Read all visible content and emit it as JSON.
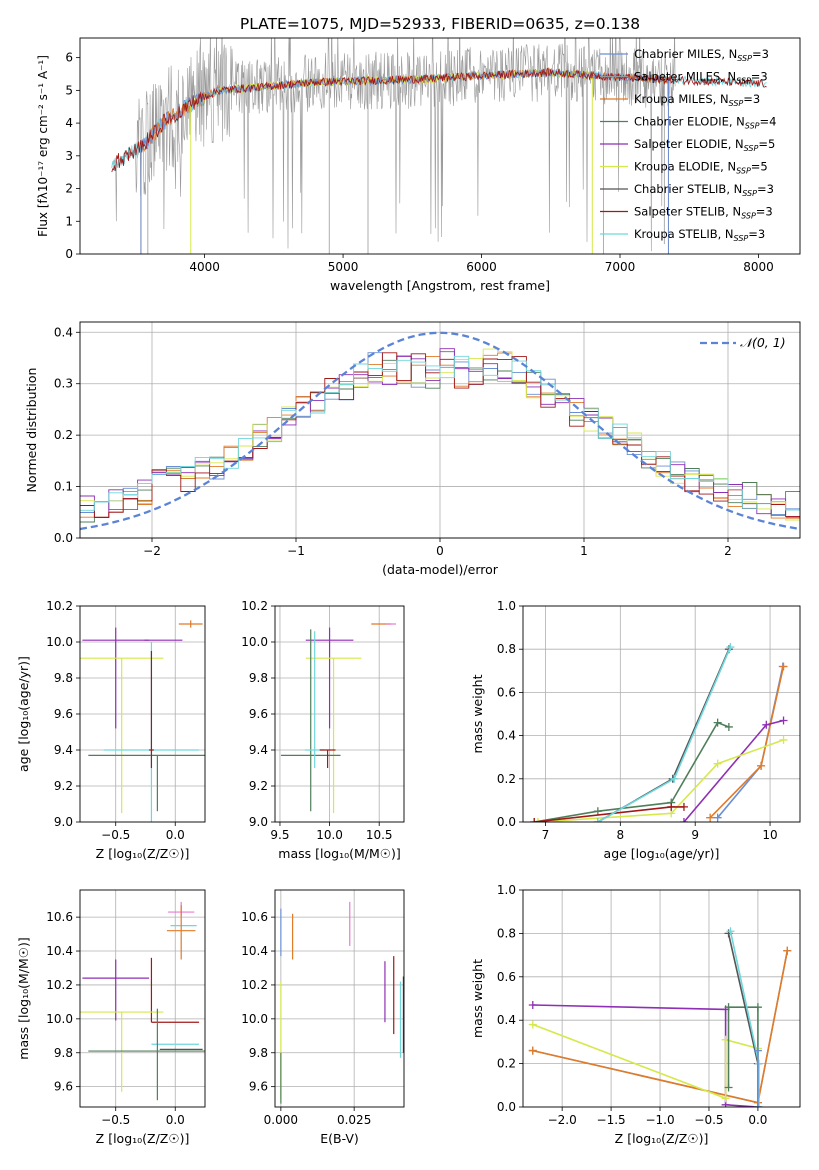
{
  "figure_title": "PLATE=1075, MJD=52933, FIBERID=0635, z=0.138",
  "colors": {
    "Chabrier MILES": "#6b8fd6",
    "Salpeter MILES": "#999999",
    "Kroupa MILES": "#e07b2a",
    "Chabrier ELODIE": "#4f7f5a",
    "Salpeter ELODIE": "#8e2fb5",
    "Kroupa ELODIE": "#d6e84a",
    "Chabrier STELIB": "#555555",
    "Salpeter STELIB": "#a01818",
    "Kroupa STELIB": "#6fd6dc",
    "Pink": "#e87ad2",
    "Gaussian": "#5b84d6"
  },
  "chart_data": [
    {
      "id": "spectrum",
      "type": "line",
      "title": "",
      "xlabel": "wavelength [Angstrom, rest frame]",
      "ylabel": "Flux [fλ10⁻¹⁷ erg cm⁻² s⁻¹ A⁻¹]",
      "xlim": [
        3100,
        8300
      ],
      "ylim": [
        0,
        6.6
      ],
      "xticks": [
        4000,
        5000,
        6000,
        7000,
        8000
      ],
      "yticks": [
        0,
        1,
        2,
        3,
        4,
        5,
        6
      ],
      "grid": false,
      "legend_position": "top-right",
      "continuum": [
        [
          3330,
          2.7
        ],
        [
          3550,
          3.3
        ],
        [
          3700,
          4.0
        ],
        [
          3900,
          4.6
        ],
        [
          4100,
          5.0
        ],
        [
          4400,
          5.1
        ],
        [
          4800,
          5.25
        ],
        [
          5200,
          5.3
        ],
        [
          5600,
          5.35
        ],
        [
          6000,
          5.45
        ],
        [
          6500,
          5.55
        ],
        [
          7000,
          5.4
        ],
        [
          7500,
          5.3
        ],
        [
          8060,
          5.2
        ]
      ],
      "series": [
        {
          "name": "Chabrier MILES",
          "label_main": "Chabrier MILES, N",
          "label_sub": "SSP",
          "label_tail": "=3"
        },
        {
          "name": "Salpeter MILES",
          "label_main": "Salpeter MILES, N",
          "label_sub": "SSP",
          "label_tail": "=3"
        },
        {
          "name": "Kroupa MILES",
          "label_main": "Kroupa MILES, N",
          "label_sub": "SSP",
          "label_tail": "=3"
        },
        {
          "name": "Chabrier ELODIE",
          "label_main": "Chabrier ELODIE, N",
          "label_sub": "SSP",
          "label_tail": "=4"
        },
        {
          "name": "Salpeter ELODIE",
          "label_main": "Salpeter ELODIE, N",
          "label_sub": "SSP",
          "label_tail": "=5"
        },
        {
          "name": "Kroupa ELODIE",
          "label_main": "Kroupa ELODIE, N",
          "label_sub": "SSP",
          "label_tail": "=5"
        },
        {
          "name": "Chabrier STELIB",
          "label_main": "Chabrier STELIB, N",
          "label_sub": "SSP",
          "label_tail": "=3"
        },
        {
          "name": "Salpeter STELIB",
          "label_main": "Salpeter STELIB, N",
          "label_sub": "SSP",
          "label_tail": "=3"
        },
        {
          "name": "Kroupa STELIB",
          "label_main": "Kroupa STELIB, N",
          "label_sub": "SSP",
          "label_tail": "=3"
        }
      ]
    },
    {
      "id": "residuals",
      "type": "line",
      "xlabel": "(data-model)/error",
      "ylabel": "Normed distribution",
      "xlim": [
        -2.5,
        2.5
      ],
      "ylim": [
        0,
        0.42
      ],
      "xticks": [
        -2,
        -1,
        0,
        1,
        2
      ],
      "yticks": [
        0.0,
        0.1,
        0.2,
        0.3,
        0.4
      ],
      "grid": true,
      "legend_position": "top-right",
      "legend_label": "𝒩(0, 1)",
      "gaussian": {
        "mean": 0,
        "sigma": 1
      }
    },
    {
      "id": "age_vs_Z",
      "type": "scatter",
      "xlabel": "Z [log₁₀(Z/Z☉)]",
      "ylabel": "age  [log₁₀(age/yr)]",
      "xlim": [
        -0.8,
        0.25
      ],
      "ylim": [
        9.0,
        10.2
      ],
      "xticks": [
        -0.5,
        0.0
      ],
      "yticks": [
        9.0,
        9.2,
        9.4,
        9.6,
        9.8,
        10.0,
        10.2
      ],
      "grid": true,
      "points": [
        {
          "series": "Salpeter ELODIE",
          "x": -0.5,
          "y": 10.01,
          "xerr": 0.28,
          "yerr": [
            0.49,
            0.07
          ]
        },
        {
          "series": "Kroupa ELODIE",
          "x": -0.45,
          "y": 9.91,
          "xerr": 0.35,
          "yerr": [
            0.86,
            0.0
          ]
        },
        {
          "series": "Chabrier ELODIE",
          "x": -0.15,
          "y": 9.37,
          "xerr": 0.58,
          "yerr": [
            0.31,
            0.0
          ]
        },
        {
          "series": "Kroupa STELIB",
          "x": -0.2,
          "y": 9.4,
          "xerr": 0.4,
          "yerr": [
            0.6,
            0.6
          ]
        },
        {
          "series": "Salpeter STELIB",
          "x": -0.2,
          "y": 9.4,
          "xerr": 0.02,
          "yerr": [
            0.1,
            0.55
          ]
        },
        {
          "series": "Kroupa MILES",
          "x": 0.13,
          "y": 10.1,
          "xerr": 0.1,
          "yerr": [
            0.02,
            0.02
          ]
        },
        {
          "series": "Salpeter ELODIE",
          "x": -0.1,
          "y": 10.01,
          "xerr": 0.16,
          "yerr": [
            0.0,
            0.0
          ]
        }
      ]
    },
    {
      "id": "age_vs_mass",
      "type": "scatter",
      "xlabel": "mass [log₁₀(M/M☉)]",
      "ylabel": "",
      "xlim": [
        9.45,
        10.75
      ],
      "ylim": [
        9.0,
        10.2
      ],
      "xticks": [
        9.5,
        10.0,
        10.5
      ],
      "yticks": [
        9.0,
        9.2,
        9.4,
        9.6,
        9.8,
        10.0,
        10.2
      ],
      "grid": true,
      "points": [
        {
          "series": "Salpeter ELODIE",
          "x": 10.0,
          "y": 10.01,
          "xerr": 0.24,
          "yerr": [
            0.49,
            0.07
          ]
        },
        {
          "series": "Kroupa ELODIE",
          "x": 10.04,
          "y": 9.91,
          "xerr": 0.28,
          "yerr": [
            0.86,
            0.0
          ]
        },
        {
          "series": "Chabrier ELODIE",
          "x": 9.81,
          "y": 9.37,
          "xerr": 0.3,
          "yerr": [
            0.31,
            0.7
          ]
        },
        {
          "series": "Kroupa STELIB",
          "x": 9.85,
          "y": 9.4,
          "xerr": 0.1,
          "yerr": [
            0.1,
            0.66
          ]
        },
        {
          "series": "Salpeter STELIB",
          "x": 9.98,
          "y": 9.4,
          "xerr": 0.08,
          "yerr": [
            0.1,
            0.0
          ]
        },
        {
          "series": "Kroupa MILES",
          "x": 10.52,
          "y": 10.1,
          "xerr": 0.1,
          "yerr": [
            0.0,
            0.0
          ]
        },
        {
          "series": "Pink",
          "x": 10.62,
          "y": 10.1,
          "xerr": 0.05,
          "yerr": [
            0.0,
            0.0
          ]
        }
      ]
    },
    {
      "id": "weight_vs_age",
      "type": "line",
      "xlabel": "age  [log₁₀(age/yr)]",
      "ylabel": "mass weight",
      "xlim": [
        6.7,
        10.4
      ],
      "ylim": [
        0.0,
        1.0
      ],
      "xticks": [
        7,
        8,
        9,
        10
      ],
      "yticks": [
        0.0,
        0.2,
        0.4,
        0.6,
        0.8,
        1.0
      ],
      "grid": true,
      "series": [
        {
          "name": "Chabrier MILES",
          "x": [
            9.3,
            9.88,
            10.17
          ],
          "y": [
            0.02,
            0.26,
            0.72
          ]
        },
        {
          "name": "Kroupa MILES",
          "x": [
            9.2,
            9.88,
            10.18
          ],
          "y": [
            0.02,
            0.26,
            0.72
          ]
        },
        {
          "name": "Chabrier ELODIE",
          "x": [
            6.85,
            7.7,
            8.68,
            9.3,
            9.45
          ],
          "y": [
            0.0,
            0.05,
            0.09,
            0.46,
            0.44
          ]
        },
        {
          "name": "Salpeter ELODIE",
          "x": [
            8.85,
            9.95,
            10.18
          ],
          "y": [
            0.0,
            0.45,
            0.47
          ]
        },
        {
          "name": "Kroupa ELODIE",
          "x": [
            6.9,
            8.68,
            9.3,
            10.18
          ],
          "y": [
            0.0,
            0.04,
            0.27,
            0.38
          ]
        },
        {
          "name": "Salpeter STELIB",
          "x": [
            6.85,
            8.68,
            8.85
          ],
          "y": [
            0.0,
            0.07,
            0.07
          ]
        },
        {
          "name": "Chabrier STELIB",
          "x": [
            7.7,
            8.7,
            9.45
          ],
          "y": [
            0.0,
            0.2,
            0.8
          ]
        },
        {
          "name": "Kroupa STELIB",
          "x": [
            7.7,
            8.72,
            9.47
          ],
          "y": [
            0.0,
            0.2,
            0.81
          ]
        }
      ]
    },
    {
      "id": "mass_vs_Z",
      "type": "scatter",
      "xlabel": "Z [log₁₀(Z/Z☉)]",
      "ylabel": "mass [log₁₀(M/M☉)]",
      "xlim": [
        -0.8,
        0.25
      ],
      "ylim": [
        9.48,
        10.76
      ],
      "xticks": [
        -0.5,
        0.0
      ],
      "yticks": [
        9.6,
        9.8,
        10.0,
        10.2,
        10.4,
        10.6
      ],
      "grid": true,
      "points": [
        {
          "series": "Pink",
          "x": 0.05,
          "y": 10.63,
          "xerr": 0.11,
          "yerr": [
            0.02,
            0.06
          ]
        },
        {
          "series": "Kroupa STELIB",
          "x": 0.07,
          "y": 10.55,
          "xerr": 0.11,
          "yerr": [
            0.0,
            0.0
          ]
        },
        {
          "series": "Kroupa MILES",
          "x": 0.05,
          "y": 10.52,
          "xerr": 0.12,
          "yerr": [
            0.17,
            0.15
          ]
        },
        {
          "series": "Salpeter ELODIE",
          "x": -0.5,
          "y": 10.24,
          "xerr": 0.28,
          "yerr": [
            0.25,
            0.11
          ]
        },
        {
          "series": "Salpeter STELIB",
          "x": -0.2,
          "y": 10.24,
          "xerr": 0.0,
          "yerr": [
            0.26,
            0.12
          ]
        },
        {
          "series": "Kroupa ELODIE",
          "x": -0.45,
          "y": 10.04,
          "xerr": 0.35,
          "yerr": [
            0.47,
            0.0
          ]
        },
        {
          "series": "Salpeter STELIB",
          "x": 0.0,
          "y": 9.98,
          "xerr": 0.2,
          "yerr": [
            0.0,
            0.0
          ]
        },
        {
          "series": "Kroupa STELIB",
          "x": 0.0,
          "y": 9.85,
          "xerr": 0.2,
          "yerr": [
            0.0,
            0.0
          ]
        },
        {
          "series": "Chabrier ELODIE",
          "x": -0.15,
          "y": 9.81,
          "xerr": 0.58,
          "yerr": [
            0.29,
            0.25
          ]
        },
        {
          "series": "Chabrier STELIB",
          "x": 0.05,
          "y": 9.82,
          "xerr": 0.18,
          "yerr": [
            0.0,
            0.0
          ]
        }
      ]
    },
    {
      "id": "mass_vs_ebv",
      "type": "scatter",
      "xlabel": "E(B-V)",
      "ylabel": "",
      "xlim": [
        -0.002,
        0.042
      ],
      "ylim": [
        9.48,
        10.76
      ],
      "xticks": [
        0.0,
        0.025
      ],
      "yticks": [
        9.6,
        9.8,
        10.0,
        10.2,
        10.4,
        10.6
      ],
      "grid": true,
      "points": [
        {
          "series": "Chabrier MILES",
          "x": 0.0,
          "y": 10.52,
          "yerr": [
            0.15,
            0.13
          ]
        },
        {
          "series": "Kroupa MILES",
          "x": 0.004,
          "y": 10.48,
          "yerr": [
            0.13,
            0.14
          ]
        },
        {
          "series": "Kroupa ELODIE",
          "x": 0.0,
          "y": 9.88,
          "yerr": [
            0.35,
            0.34
          ]
        },
        {
          "series": "Chabrier ELODIE",
          "x": 0.0,
          "y": 9.7,
          "yerr": [
            0.2,
            0.1
          ]
        },
        {
          "series": "Pink",
          "x": 0.0235,
          "y": 10.55,
          "yerr": [
            0.12,
            0.14
          ]
        },
        {
          "series": "Salpeter ELODIE",
          "x": 0.0355,
          "y": 10.08,
          "yerr": [
            0.1,
            0.26
          ]
        },
        {
          "series": "Salpeter STELIB",
          "x": 0.0385,
          "y": 10.07,
          "yerr": [
            0.16,
            0.3
          ]
        },
        {
          "series": "Kroupa STELIB",
          "x": 0.0408,
          "y": 9.95,
          "yerr": [
            0.18,
            0.27
          ]
        },
        {
          "series": "Chabrier STELIB",
          "x": 0.0418,
          "y": 10.0,
          "yerr": [
            0.2,
            0.25
          ]
        }
      ]
    },
    {
      "id": "weight_vs_Z",
      "type": "line",
      "xlabel": "Z [log₁₀(Z/Z☉)]",
      "ylabel": "mass weight",
      "xlim": [
        -2.4,
        0.43
      ],
      "ylim": [
        0.0,
        1.0
      ],
      "xticks": [
        -2.0,
        -1.5,
        -1.0,
        -0.5,
        0.0
      ],
      "yticks": [
        0.0,
        0.2,
        0.4,
        0.6,
        0.8,
        1.0
      ],
      "grid": true,
      "series": [
        {
          "name": "Salpeter MILES",
          "x": [
            -2.3,
            0.0,
            0.3
          ],
          "y": [
            0.26,
            0.02,
            0.72
          ]
        },
        {
          "name": "Kroupa MILES",
          "x": [
            -2.3,
            0.0,
            0.3
          ],
          "y": [
            0.26,
            0.02,
            0.72
          ]
        },
        {
          "name": "Salpeter ELODIE",
          "x": [
            -2.3,
            -0.33,
            -0.33,
            0.0
          ],
          "y": [
            0.47,
            0.45,
            0.01,
            0.0
          ]
        },
        {
          "name": "Kroupa ELODIE",
          "x": [
            -2.3,
            -0.33,
            -0.33,
            0.0,
            0.0
          ],
          "y": [
            0.38,
            0.04,
            0.31,
            0.27,
            0.0
          ]
        },
        {
          "name": "Chabrier ELODIE",
          "x": [
            -0.3,
            -0.3,
            0.0,
            0.0
          ],
          "y": [
            0.09,
            0.46,
            0.46,
            0.0
          ]
        },
        {
          "name": "Chabrier STELIB",
          "x": [
            -0.3,
            0.0,
            0.0
          ],
          "y": [
            0.8,
            0.2,
            0.0
          ]
        },
        {
          "name": "Kroupa STELIB",
          "x": [
            -0.28,
            0.01,
            0.01
          ],
          "y": [
            0.81,
            0.2,
            0.0
          ]
        },
        {
          "name": "Chabrier MILES",
          "x": [
            0.0,
            0.0
          ],
          "y": [
            0.0,
            0.26
          ]
        }
      ]
    }
  ]
}
